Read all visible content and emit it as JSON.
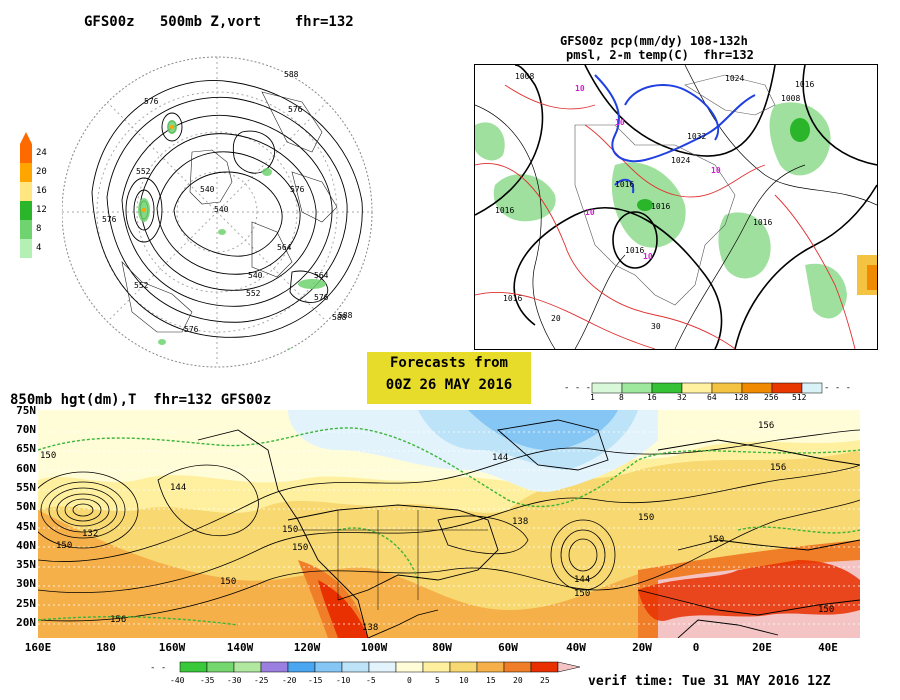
{
  "top_left_panel": {
    "title": "GFS00z   500mb Z,vort    fhr=132",
    "colorbar_labels": [
      "24",
      "20",
      "16",
      "12",
      "8",
      "4"
    ],
    "colorbar_colors": [
      "#ff6a00",
      "#ffa500",
      "#ffe680",
      "#2ab52a",
      "#6fd46f",
      "#b4f0b4"
    ],
    "contour_labels": [
      "588",
      "576",
      "576",
      "564",
      "552",
      "540",
      "576",
      "552",
      "540",
      "564",
      "588",
      "576",
      "540",
      "552",
      "576",
      "588",
      "576"
    ]
  },
  "top_right_panel": {
    "title_line1": "GFS00z pcp(mm/dy) 108-132h",
    "title_line2": "pmsl, 2-m temp(C)  fhr=132",
    "pressure_labels": [
      "1008",
      "1016",
      "1016",
      "1016",
      "1024",
      "1024",
      "1032",
      "1016",
      "1016",
      "1008",
      "1016",
      "1016"
    ],
    "temp_labels": [
      "10",
      "10",
      "10",
      "10",
      "10",
      "20",
      "30"
    ]
  },
  "banner": {
    "line1": "Forecasts from",
    "line2": "00Z 26 MAY 2016"
  },
  "precip_colorbar": {
    "labels": [
      "1",
      "8",
      "16",
      "32",
      "64",
      "128",
      "256",
      "512"
    ],
    "colors": [
      "#d9f7d9",
      "#9ee89e",
      "#36c236",
      "#fff1a0",
      "#f5c342",
      "#f08a00",
      "#e83800",
      "#d8f2f8"
    ]
  },
  "bottom_panel": {
    "title": "850mb hgt(dm),T  fhr=132 GFS00z",
    "lat_labels": [
      "75N",
      "70N",
      "65N",
      "60N",
      "55N",
      "50N",
      "45N",
      "40N",
      "35N",
      "30N",
      "25N",
      "20N"
    ],
    "lon_labels": [
      "160E",
      "180",
      "160W",
      "140W",
      "120W",
      "100W",
      "80W",
      "60W",
      "40W",
      "20W",
      "0",
      "20E",
      "40E"
    ],
    "contour_labels": [
      "150",
      "144",
      "132",
      "138",
      "150",
      "150",
      "156",
      "150",
      "138",
      "144",
      "150",
      "144",
      "156",
      "156",
      "150",
      "150",
      "150",
      "150"
    ]
  },
  "temp_colorbar": {
    "labels": [
      "-40",
      "-35",
      "-30",
      "-25",
      "-20",
      "-15",
      "-10",
      "-5",
      "0",
      "5",
      "10",
      "15",
      "20",
      "25"
    ],
    "colors": [
      "#39c83a",
      "#75d86e",
      "#b0e8a0",
      "#9b7fe0",
      "#4aa6f0",
      "#86c6f5",
      "#bde3f8",
      "#e3f3fb",
      "#fffdd8",
      "#fff0a0",
      "#f8d870",
      "#f5b049",
      "#f07d28",
      "#e83000"
    ]
  },
  "verif_text": "verif time: Tue 31 MAY 2016 12Z"
}
